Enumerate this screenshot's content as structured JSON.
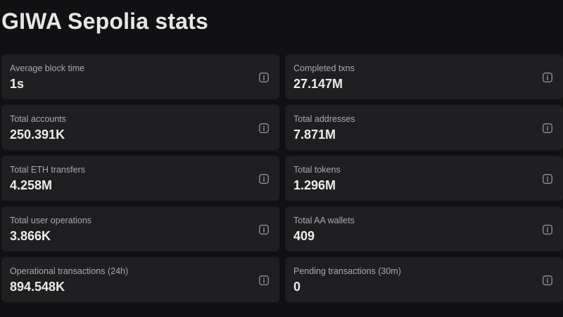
{
  "page": {
    "title": "GIWA Sepolia stats"
  },
  "stats": [
    {
      "label": "Average block time",
      "value": "1s",
      "icon": "info-icon"
    },
    {
      "label": "Completed txns",
      "value": "27.147M",
      "icon": "info-icon"
    },
    {
      "label": "Total accounts",
      "value": "250.391K",
      "icon": "info-icon"
    },
    {
      "label": "Total addresses",
      "value": "7.871M",
      "icon": "info-icon"
    },
    {
      "label": "Total ETH transfers",
      "value": "4.258M",
      "icon": "info-icon"
    },
    {
      "label": "Total tokens",
      "value": "1.296M",
      "icon": "info-icon"
    },
    {
      "label": "Total user operations",
      "value": "3.866K",
      "icon": "info-icon"
    },
    {
      "label": "Total AA wallets",
      "value": "409",
      "icon": "info-icon"
    },
    {
      "label": "Operational transactions (24h)",
      "value": "894.548K",
      "icon": "info-icon"
    },
    {
      "label": "Pending transactions (30m)",
      "value": "0",
      "icon": "info-icon"
    }
  ],
  "colors": {
    "background": "#111113",
    "card": "#1f1f21",
    "label": "#a8abb2",
    "value": "#ececec",
    "icon": "#9a9ea6"
  }
}
